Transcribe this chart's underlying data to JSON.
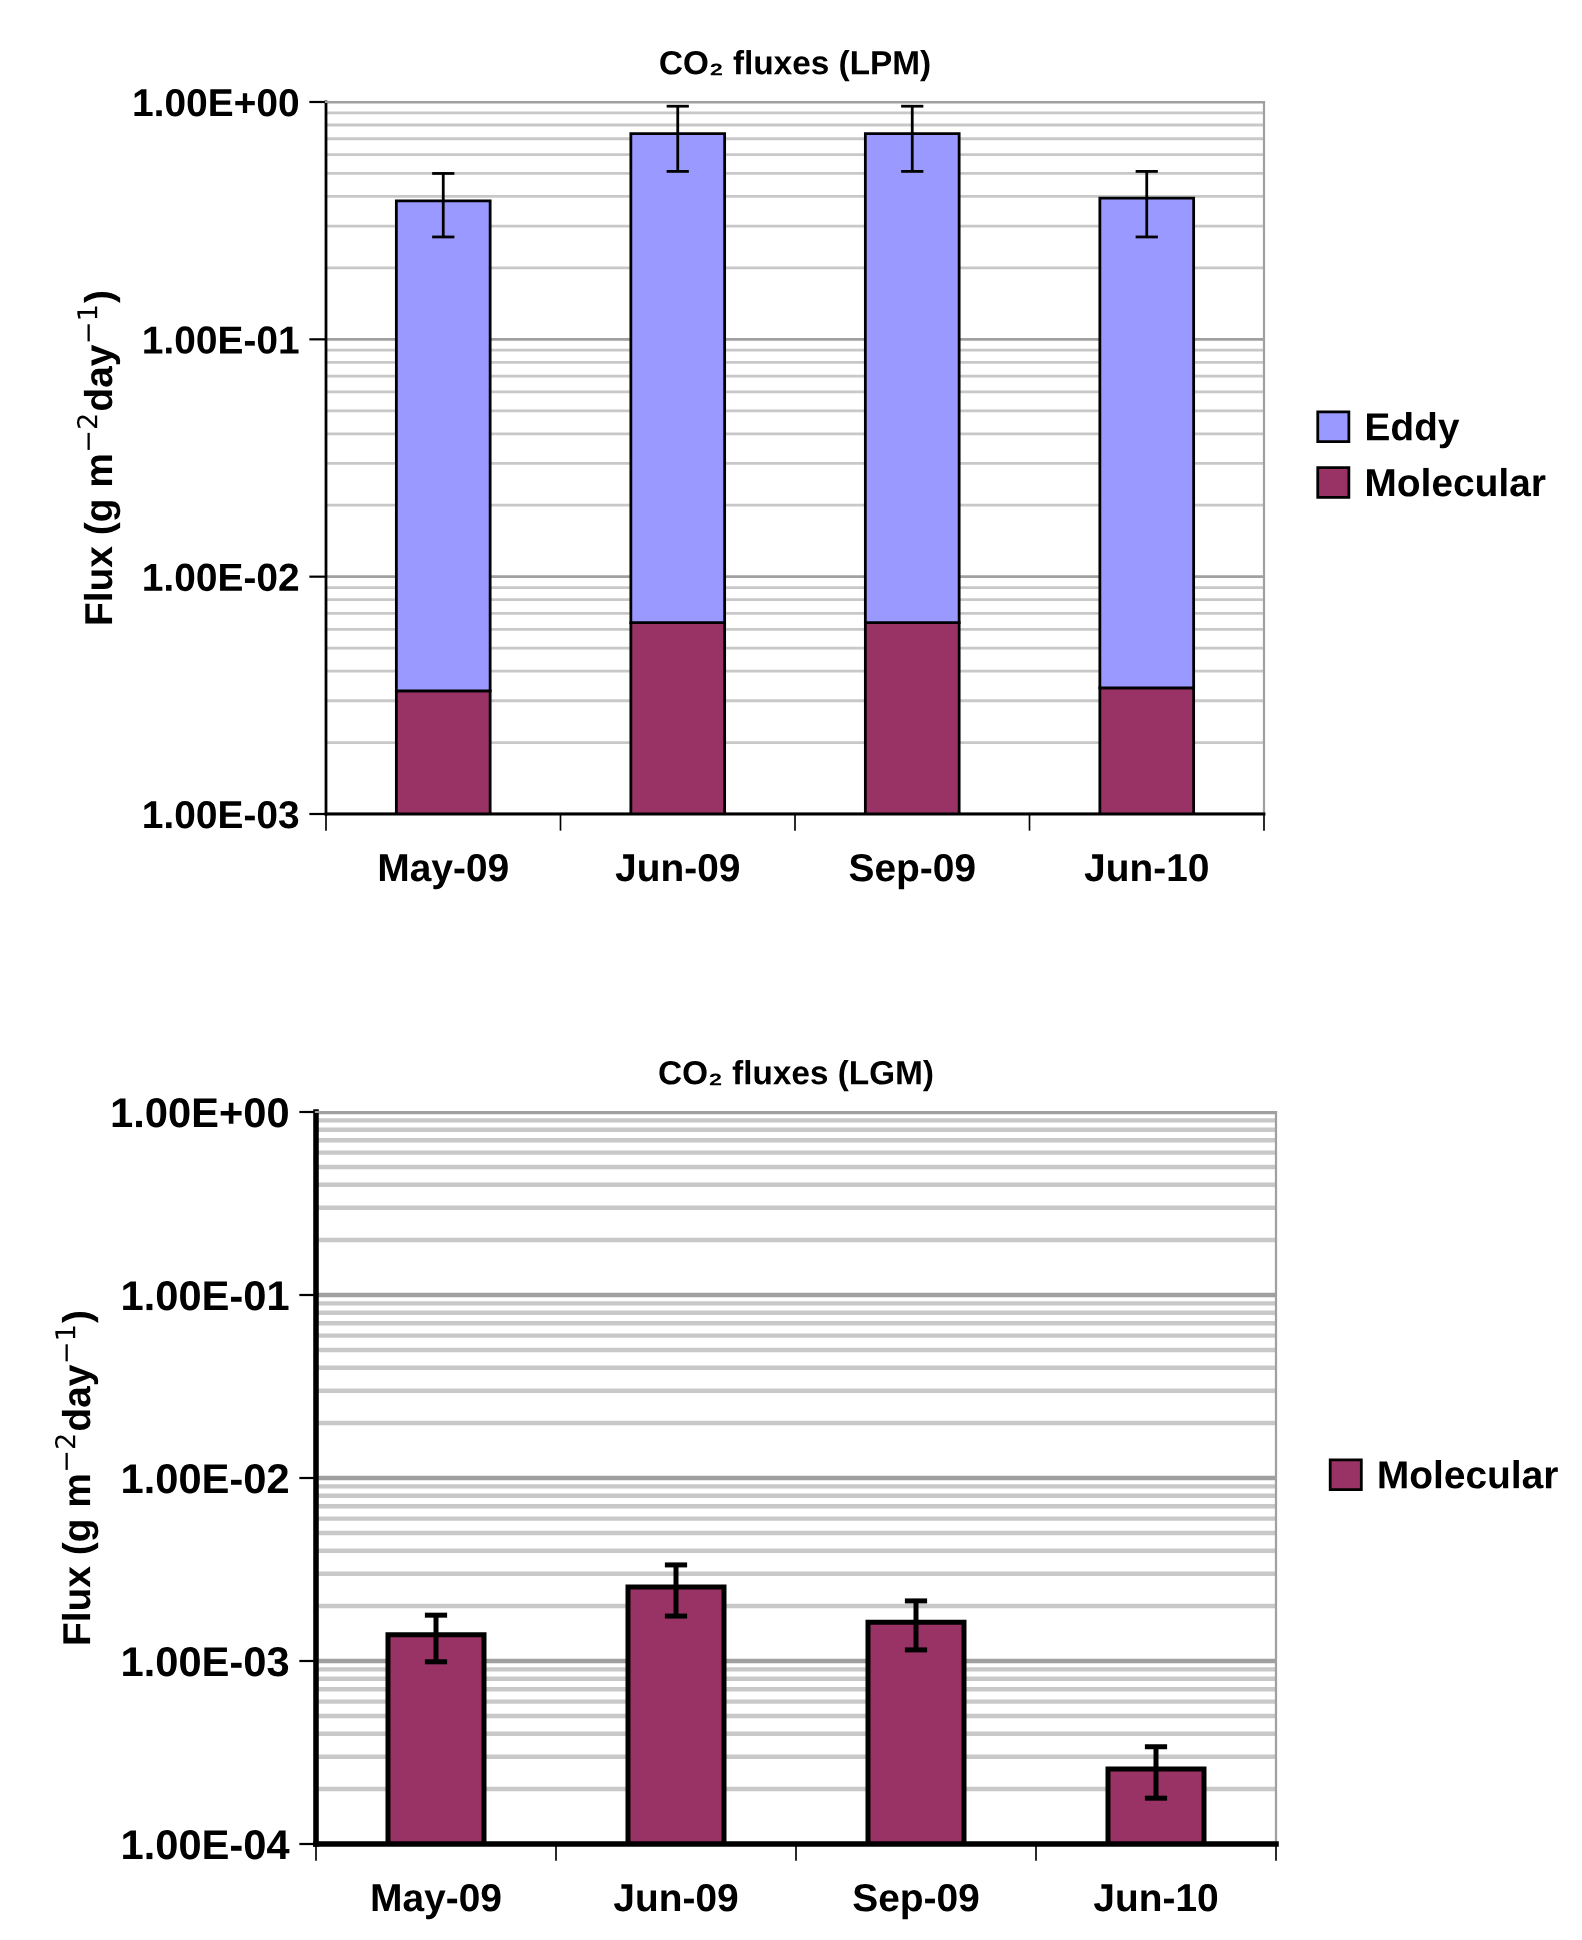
{
  "chart_data": [
    {
      "type": "bar",
      "title": "CO₂ fluxes (LPM)",
      "ylabel": "Flux (g m$^{−2}$day$^{−1}$)",
      "stacked": true,
      "log": "y",
      "grid": "y",
      "legend": "right",
      "categories": [
        "May-09",
        "Jun-09",
        "Sep-09",
        "Jun-10"
      ],
      "ylim": [
        0.001,
        1
      ],
      "yticks": [
        {
          "value": 0.001,
          "label": "1.00E-03"
        },
        {
          "value": 0.01,
          "label": "1.00E-02"
        },
        {
          "value": 0.1,
          "label": "1.00E-01"
        },
        {
          "value": 1,
          "label": "1.00E+00"
        }
      ],
      "series": [
        {
          "name": "Molecular",
          "color": "#993366",
          "values": [
            0.0033,
            0.0064,
            0.0064,
            0.0034
          ]
        },
        {
          "name": "Eddy",
          "color": "#9999ff",
          "values": [
            0.38,
            0.73,
            0.73,
            0.39
          ],
          "errors": [
            [
              0.27,
              0.5
            ],
            [
              0.51,
              0.96
            ],
            [
              0.51,
              0.96
            ],
            [
              0.27,
              0.51
            ]
          ]
        }
      ]
    },
    {
      "type": "bar",
      "title": "CO₂ fluxes (LGM)",
      "ylabel": "Flux (g m$^{−2}$day$^{−1}$)",
      "log": "y",
      "grid": "y",
      "legend": "right",
      "categories": [
        "May-09",
        "Jun-09",
        "Sep-09",
        "Jun-10"
      ],
      "ylim": [
        0.0001,
        1
      ],
      "yticks": [
        {
          "value": 0.0001,
          "label": "1.00E-04"
        },
        {
          "value": 0.001,
          "label": "1.00E-03"
        },
        {
          "value": 0.01,
          "label": "1.00E-02"
        },
        {
          "value": 0.1,
          "label": "1.00E-01"
        },
        {
          "value": 1,
          "label": "1.00E+00"
        }
      ],
      "series": [
        {
          "name": "Molecular",
          "color": "#993366",
          "values": [
            0.00139,
            0.00254,
            0.00163,
            0.000257
          ],
          "errors": [
            [
              0.00099,
              0.00178
            ],
            [
              0.00176,
              0.00335
            ],
            [
              0.00115,
              0.00213
            ],
            [
              0.000178,
              0.00034
            ]
          ]
        }
      ]
    }
  ]
}
